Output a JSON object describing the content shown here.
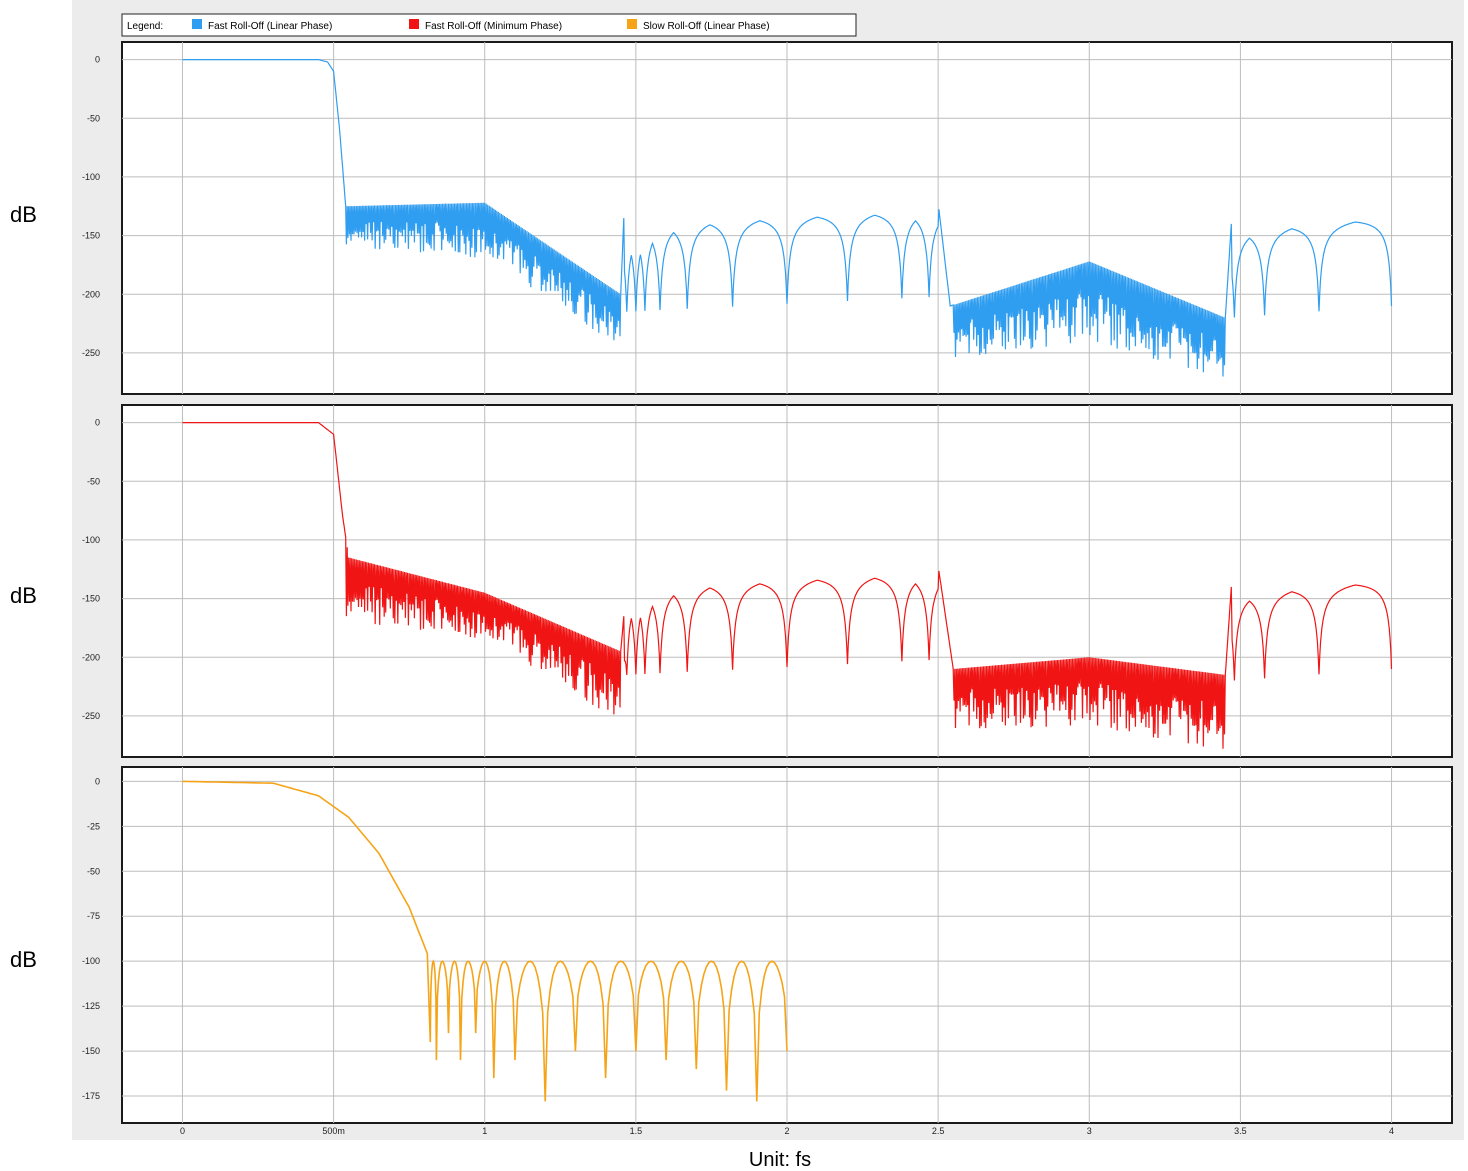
{
  "legend": {
    "label": "Legend:",
    "entries": [
      {
        "name": "Fast Roll-Off (Linear Phase)",
        "color": "#2f9df0"
      },
      {
        "name": "Fast Roll-Off (Minimum Phase)",
        "color": "#f01414"
      },
      {
        "name": "Slow Roll-Off (Linear Phase)",
        "color": "#f5a418"
      }
    ]
  },
  "chart_data": [
    {
      "type": "line",
      "series_name": "Fast Roll-Off (Linear Phase)",
      "color": "#2f9df0",
      "ylabel": "dB",
      "xlim": [
        -0.2,
        4.2
      ],
      "ylim": [
        -285,
        15
      ],
      "yticks": [
        0,
        -50,
        -100,
        -150,
        -200,
        -250
      ],
      "grid": true,
      "envelope": [
        [
          0,
          0
        ],
        [
          0.45,
          0
        ],
        [
          0.48,
          -2
        ],
        [
          0.5,
          -10
        ],
        [
          0.52,
          -60
        ],
        [
          0.54,
          -125
        ],
        [
          1.0,
          -122
        ],
        [
          1.45,
          -200
        ],
        [
          1.46,
          -135
        ],
        [
          2.5,
          -122
        ],
        [
          2.54,
          -210
        ],
        [
          3.0,
          -172
        ],
        [
          3.45,
          -220
        ],
        [
          3.47,
          -140
        ],
        [
          4.0,
          -130
        ]
      ],
      "floor": [
        [
          0.54,
          -160
        ],
        [
          1.0,
          -170
        ],
        [
          1.45,
          -245
        ],
        [
          2.56,
          -255
        ],
        [
          3.0,
          -240
        ],
        [
          3.45,
          -272
        ]
      ]
    },
    {
      "type": "line",
      "series_name": "Fast Roll-Off (Minimum Phase)",
      "color": "#f01414",
      "ylabel": "dB",
      "xlim": [
        -0.2,
        4.2
      ],
      "ylim": [
        -285,
        15
      ],
      "yticks": [
        0,
        -50,
        -100,
        -150,
        -200,
        -250
      ],
      "grid": true,
      "envelope": [
        [
          0,
          0
        ],
        [
          0.45,
          0
        ],
        [
          0.5,
          -10
        ],
        [
          0.53,
          -80
        ],
        [
          0.55,
          -115
        ],
        [
          1.0,
          -145
        ],
        [
          1.45,
          -195
        ],
        [
          1.47,
          -135
        ],
        [
          2.5,
          -122
        ],
        [
          2.55,
          -210
        ],
        [
          3.0,
          -200
        ],
        [
          3.45,
          -215
        ],
        [
          3.47,
          -140
        ],
        [
          4.0,
          -130
        ]
      ],
      "floor": [
        [
          0.55,
          -170
        ],
        [
          1.0,
          -185
        ],
        [
          1.45,
          -255
        ],
        [
          2.56,
          -262
        ],
        [
          3.0,
          -258
        ],
        [
          3.45,
          -280
        ]
      ]
    },
    {
      "type": "line",
      "series_name": "Slow Roll-Off (Linear Phase)",
      "color": "#f5a418",
      "ylabel": "dB",
      "xlabel": "Unit: fs",
      "xlim": [
        -0.2,
        4.2
      ],
      "ylim": [
        -190,
        8
      ],
      "yticks": [
        0,
        -25,
        -50,
        -75,
        -100,
        -125,
        -150,
        -175
      ],
      "xticks": [
        {
          "value": 0,
          "label": "0"
        },
        {
          "value": 0.5,
          "label": "500m"
        },
        {
          "value": 1,
          "label": "1"
        },
        {
          "value": 1.5,
          "label": "1.5"
        },
        {
          "value": 2,
          "label": "2"
        },
        {
          "value": 2.5,
          "label": "2.5"
        },
        {
          "value": 3,
          "label": "3"
        },
        {
          "value": 3.5,
          "label": "3.5"
        },
        {
          "value": 4,
          "label": "4"
        }
      ],
      "grid": true,
      "passband": [
        [
          0,
          0
        ],
        [
          0.3,
          -1
        ],
        [
          0.45,
          -8
        ],
        [
          0.55,
          -20
        ],
        [
          0.65,
          -40
        ],
        [
          0.75,
          -70
        ],
        [
          0.82,
          -100
        ]
      ],
      "lobe_peak": -100,
      "lobe_range": [
        0.82,
        2.0
      ],
      "nulls": [
        [
          0.82,
          -145
        ],
        [
          0.84,
          -155
        ],
        [
          0.88,
          -140
        ],
        [
          0.92,
          -155
        ],
        [
          0.97,
          -140
        ],
        [
          1.03,
          -165
        ],
        [
          1.1,
          -155
        ],
        [
          1.2,
          -178
        ],
        [
          1.3,
          -150
        ],
        [
          1.4,
          -165
        ],
        [
          1.5,
          -150
        ],
        [
          1.6,
          -155
        ],
        [
          1.7,
          -160
        ],
        [
          1.8,
          -172
        ],
        [
          1.9,
          -178
        ],
        [
          2.0,
          -150
        ]
      ]
    }
  ]
}
